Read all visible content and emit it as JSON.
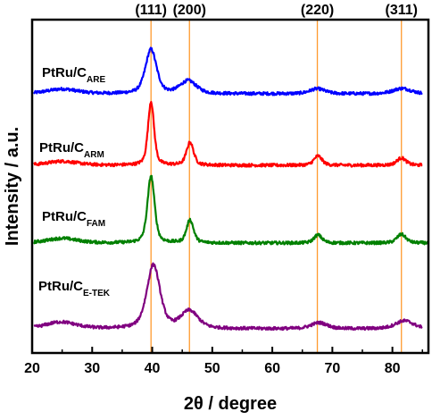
{
  "chart_data": {
    "type": "line",
    "xlabel": "2θ / degree",
    "ylabel": "Intensity / a.u.",
    "xlim": [
      20,
      86
    ],
    "x_ticks": [
      20,
      30,
      40,
      50,
      60,
      70,
      80
    ],
    "grid": false,
    "y_tick_labels": false,
    "reference_lines": [
      {
        "x": 39.8,
        "label": "(111)"
      },
      {
        "x": 46.2,
        "label": "(200)"
      },
      {
        "x": 67.5,
        "label": "(220)"
      },
      {
        "x": 81.5,
        "label": "(311)"
      }
    ],
    "reference_line_color": "#ff9a2e",
    "series": [
      {
        "name_main": "PtRu/C",
        "name_sub": "ARE",
        "color": "#0000ff",
        "baseline": 0.88,
        "peaks": [
          {
            "x": 25.0,
            "height": 0.07,
            "width": 3.0
          },
          {
            "x": 39.8,
            "height": 0.66,
            "width": 1.1
          },
          {
            "x": 46.0,
            "height": 0.19,
            "width": 1.6
          },
          {
            "x": 67.5,
            "height": 0.075,
            "width": 1.5
          },
          {
            "x": 81.6,
            "height": 0.08,
            "width": 1.8
          }
        ],
        "x_end": 85.0
      },
      {
        "name_main": "PtRu/C",
        "name_sub": "ARM",
        "color": "#ff0000",
        "baseline": 0.6,
        "peaks": [
          {
            "x": 25.0,
            "height": 0.06,
            "width": 3.0
          },
          {
            "x": 39.8,
            "height": 0.95,
            "width": 0.6
          },
          {
            "x": 46.3,
            "height": 0.34,
            "width": 0.7
          },
          {
            "x": 67.6,
            "height": 0.14,
            "width": 0.8
          },
          {
            "x": 81.5,
            "height": 0.11,
            "width": 0.9
          }
        ],
        "x_end": 85.0
      },
      {
        "name_main": "PtRu/C",
        "name_sub": "FAM",
        "color": "#008000",
        "baseline": 0.3,
        "peaks": [
          {
            "x": 25.0,
            "height": 0.07,
            "width": 3.0
          },
          {
            "x": 39.8,
            "height": 1.0,
            "width": 0.7
          },
          {
            "x": 46.3,
            "height": 0.34,
            "width": 0.7
          },
          {
            "x": 67.6,
            "height": 0.12,
            "width": 0.8
          },
          {
            "x": 81.5,
            "height": 0.13,
            "width": 0.9
          }
        ],
        "x_end": 86.0
      },
      {
        "name_main": "PtRu/C",
        "name_sub": "E-TEK",
        "color": "#800080",
        "baseline": 0.0,
        "peaks": [
          {
            "x": 24.8,
            "height": 0.1,
            "width": 3.0
          },
          {
            "x": 40.2,
            "height": 0.95,
            "width": 1.3
          },
          {
            "x": 46.2,
            "height": 0.26,
            "width": 1.7
          },
          {
            "x": 67.8,
            "height": 0.09,
            "width": 1.6
          },
          {
            "x": 82.0,
            "height": 0.12,
            "width": 1.8
          }
        ],
        "x_end": 85.0
      }
    ]
  }
}
